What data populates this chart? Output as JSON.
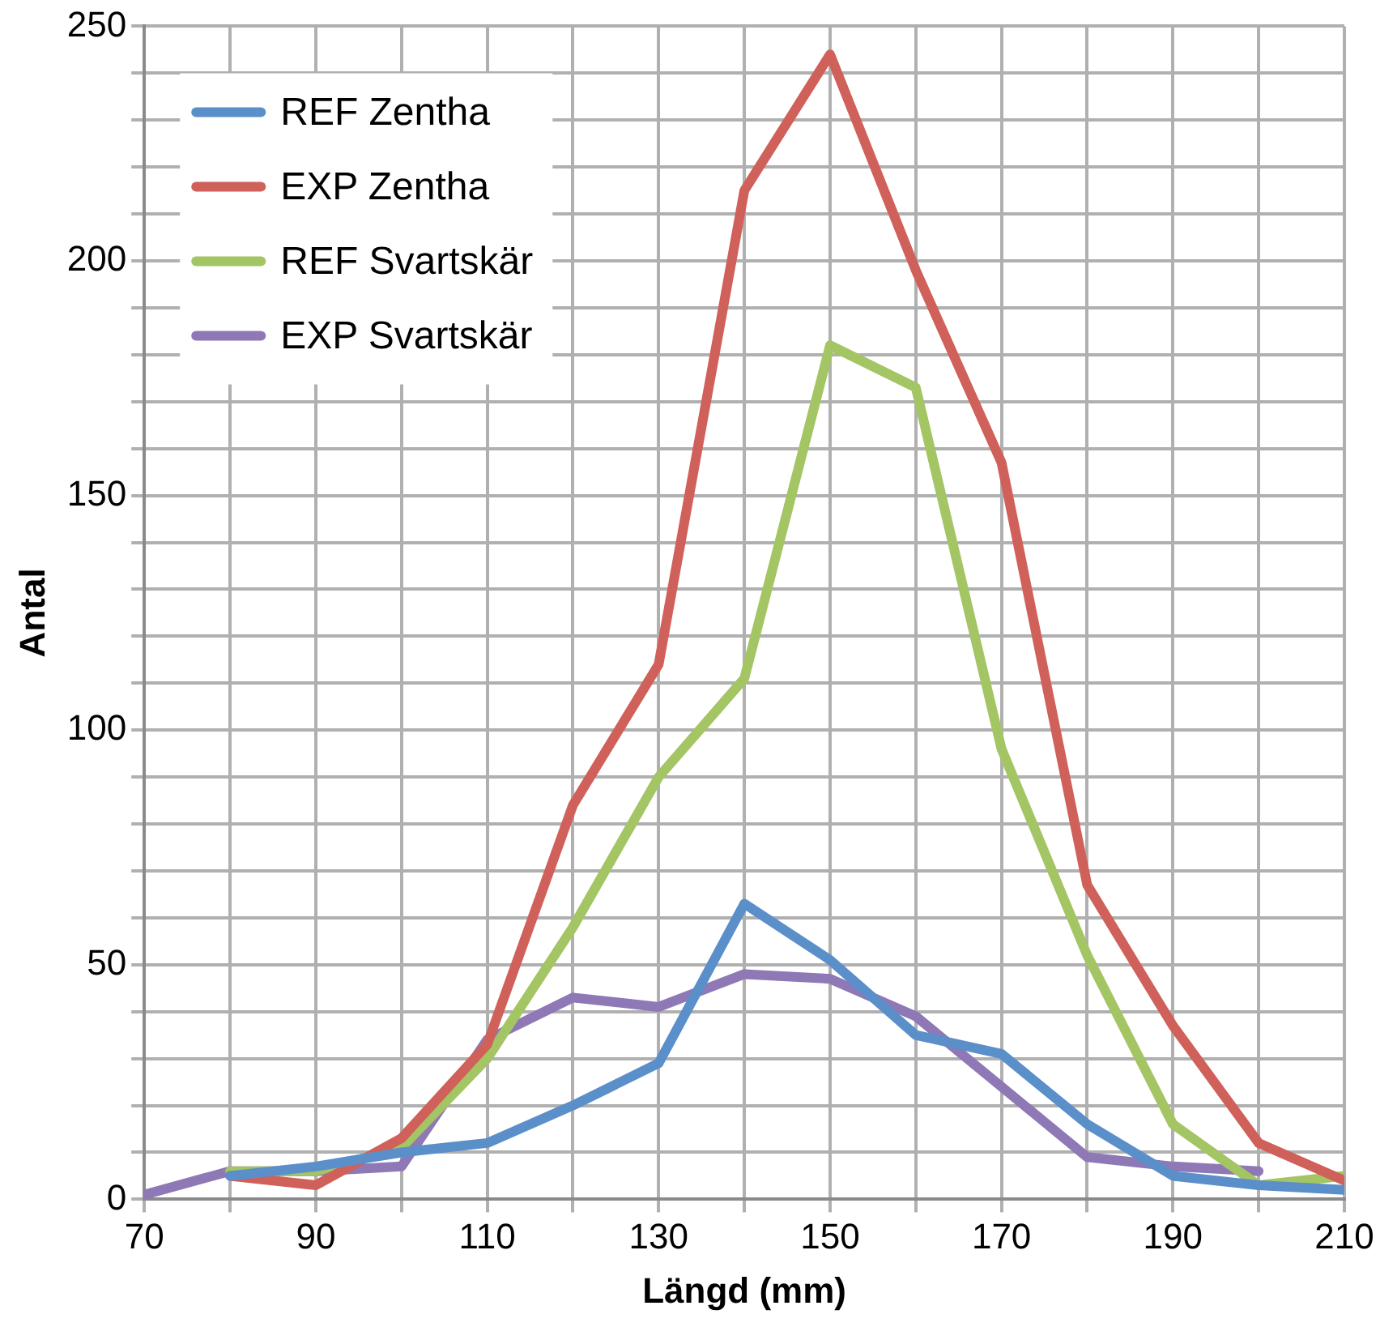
{
  "chart_data": {
    "type": "line",
    "xlabel": "Längd (mm)",
    "ylabel": "Antal",
    "x": [
      70,
      80,
      90,
      100,
      110,
      120,
      130,
      140,
      150,
      160,
      170,
      180,
      190,
      200,
      210
    ],
    "series": [
      {
        "name": "REF Zentha",
        "color": "#5b8fc9",
        "values": [
          null,
          5,
          7,
          10,
          12,
          20,
          29,
          63,
          51,
          35,
          31,
          16,
          5,
          3,
          2
        ]
      },
      {
        "name": "EXP Zentha",
        "color": "#d0605a",
        "values": [
          null,
          5,
          3,
          13,
          33,
          84,
          114,
          215,
          244,
          198,
          157,
          67,
          37,
          12,
          4
        ]
      },
      {
        "name": "REF Svartskär",
        "color": "#a3c564",
        "values": [
          null,
          6,
          6,
          11,
          30,
          58,
          90,
          111,
          182,
          173,
          96,
          52,
          16,
          3,
          5
        ]
      },
      {
        "name": "EXP Svartskär",
        "color": "#8e78b6",
        "values": [
          1,
          6,
          6,
          7,
          34,
          43,
          41,
          48,
          47,
          39,
          24,
          9,
          7,
          6,
          null
        ]
      }
    ],
    "xlim": [
      70,
      210
    ],
    "xticks": [
      70,
      {
        "value": 80,
        "label": null
      },
      90,
      {
        "value": 100,
        "label": null
      },
      110,
      {
        "value": 120,
        "label": null
      },
      130,
      {
        "value": 140,
        "label": null
      },
      150,
      {
        "value": 160,
        "label": null
      },
      170,
      {
        "value": 180,
        "label": null
      },
      190,
      {
        "value": 200,
        "label": null
      },
      210
    ],
    "ylim": [
      0,
      250
    ],
    "yticks": [
      0,
      {
        "value": 10,
        "label": null
      },
      {
        "value": 20,
        "label": null
      },
      {
        "value": 30,
        "label": null
      },
      {
        "value": 40,
        "label": null
      },
      50,
      {
        "value": 60,
        "label": null
      },
      {
        "value": 70,
        "label": null
      },
      {
        "value": 80,
        "label": null
      },
      {
        "value": 90,
        "label": null
      },
      100,
      {
        "value": 110,
        "label": null
      },
      {
        "value": 120,
        "label": null
      },
      {
        "value": 130,
        "label": null
      },
      {
        "value": 140,
        "label": null
      },
      150,
      {
        "value": 160,
        "label": null
      },
      {
        "value": 170,
        "label": null
      },
      {
        "value": 180,
        "label": null
      },
      {
        "value": 190,
        "label": null
      },
      200,
      {
        "value": 210,
        "label": null
      },
      {
        "value": 220,
        "label": null
      },
      {
        "value": 230,
        "label": null
      },
      {
        "value": 240,
        "label": null
      },
      250
    ],
    "grid": true,
    "legend": "top left",
    "marker": "none",
    "line_style": "solid"
  }
}
